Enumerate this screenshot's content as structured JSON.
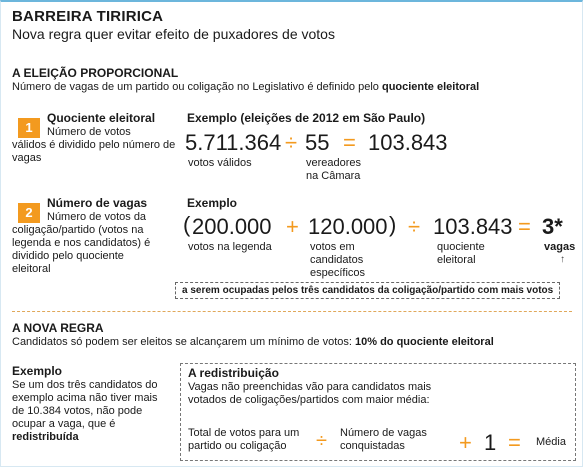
{
  "header": {
    "title": "BARREIRA TIRIRICA",
    "subtitle": "Nova regra quer evitar efeito de puxadores de votos"
  },
  "section1": {
    "heading": "A ELEIÇÃO PROPORCIONAL",
    "desc_pre": "Número de vagas de um partido ou coligação no Legislativo é definido pelo ",
    "desc_bold": "quociente eleitoral"
  },
  "step1": {
    "number": "1",
    "title": "Quociente eleitoral",
    "body_a": "Número de votos",
    "body_b": "válidos é dividido pelo número de vagas",
    "example_title": "Exemplo (eleições de 2012 em São Paulo)",
    "num1": "5.711.364",
    "op1": "÷",
    "num2": "55",
    "op2": "=",
    "num3": "103.843",
    "cap1": "votos válidos",
    "cap2": "vereadores na Câmara"
  },
  "step2": {
    "number": "2",
    "title": "Número de vagas",
    "body_a": "Número de votos da",
    "body_b": "coligação/partido (votos na legenda e nos candidatos) é dividido pelo quociente eleitoral",
    "example_title": "Exemplo",
    "paren_open": "(",
    "num1": "200.000",
    "op1": "+",
    "num2": "120.000",
    "paren_close": ")",
    "op2": "÷",
    "num3": "103.843",
    "op3": "=",
    "result": "3*",
    "cap1": "votos na legenda",
    "cap2": "votos em candidatos específicos",
    "cap3": "quociente eleitoral",
    "cap4": "vagas",
    "note": "a serem ocupadas pelos três candidatos da coligação/partido com mais votos"
  },
  "section2": {
    "heading": "A NOVA REGRA",
    "desc_pre": "Candidatos só podem ser eleitos se alcançarem um mínimo de votos: ",
    "desc_bold": "10% do quociente eleitoral"
  },
  "example": {
    "title": "Exemplo",
    "body": "Se um dos três candidatos do exemplo acima não tiver mais de 10.384 votos, não pode ocupar a vaga, que é",
    "body_bold": "redistribuída"
  },
  "redistribution": {
    "title": "A redistribuição",
    "body": "Vagas não preenchidas vão para candidatos mais votados de coligações/partidos com maior média:",
    "term1": "Total de votos para um partido ou coligação",
    "op1": "÷",
    "term2": "Número de vagas conquistadas",
    "op2": "+",
    "one": "1",
    "op3": "=",
    "result": "Média"
  },
  "colors": {
    "accent": "#f39a1f",
    "frame": "#6cb6dc"
  }
}
